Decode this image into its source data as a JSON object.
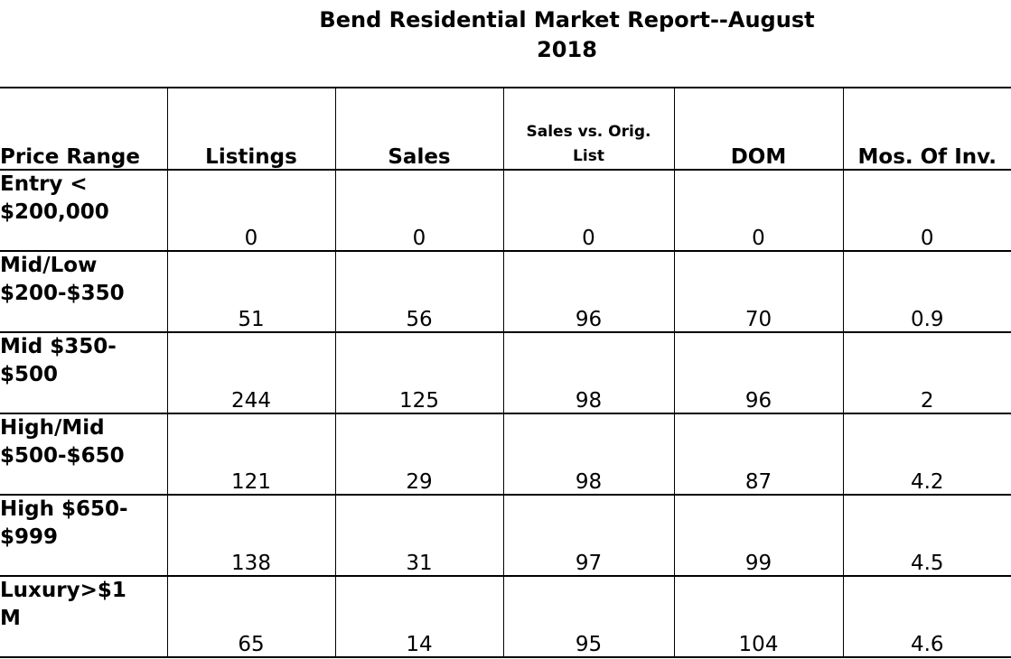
{
  "title": {
    "line1": "Bend Residential Market Report--August",
    "line2": "2018"
  },
  "headers": {
    "price_range": "Price Range",
    "listings": "Listings",
    "sales": "Sales",
    "sales_vs_orig_line1": "Sales vs. Orig.",
    "sales_vs_orig_line2": "List",
    "dom": "DOM",
    "mos_of_inv": "Mos. Of Inv."
  },
  "rows": [
    {
      "label1": "Entry <",
      "label2": "$200,000",
      "listings": "0",
      "sales": "0",
      "sales_vs_orig": "0",
      "dom": "0",
      "mos_of_inv": "0"
    },
    {
      "label1": "Mid/Low",
      "label2": "$200-$350",
      "listings": "51",
      "sales": "56",
      "sales_vs_orig": "96",
      "dom": "70",
      "mos_of_inv": "0.9"
    },
    {
      "label1": "Mid $350-",
      "label2": "$500",
      "listings": "244",
      "sales": "125",
      "sales_vs_orig": "98",
      "dom": "96",
      "mos_of_inv": "2"
    },
    {
      "label1": "High/Mid",
      "label2": "$500-$650",
      "listings": "121",
      "sales": "29",
      "sales_vs_orig": "98",
      "dom": "87",
      "mos_of_inv": "4.2"
    },
    {
      "label1": "High $650-",
      "label2": "$999",
      "listings": "138",
      "sales": "31",
      "sales_vs_orig": "97",
      "dom": "99",
      "mos_of_inv": "4.5"
    },
    {
      "label1": "Luxury>$1",
      "label2": "M",
      "listings": "65",
      "sales": "14",
      "sales_vs_orig": "95",
      "dom": "104",
      "mos_of_inv": "4.6"
    }
  ]
}
